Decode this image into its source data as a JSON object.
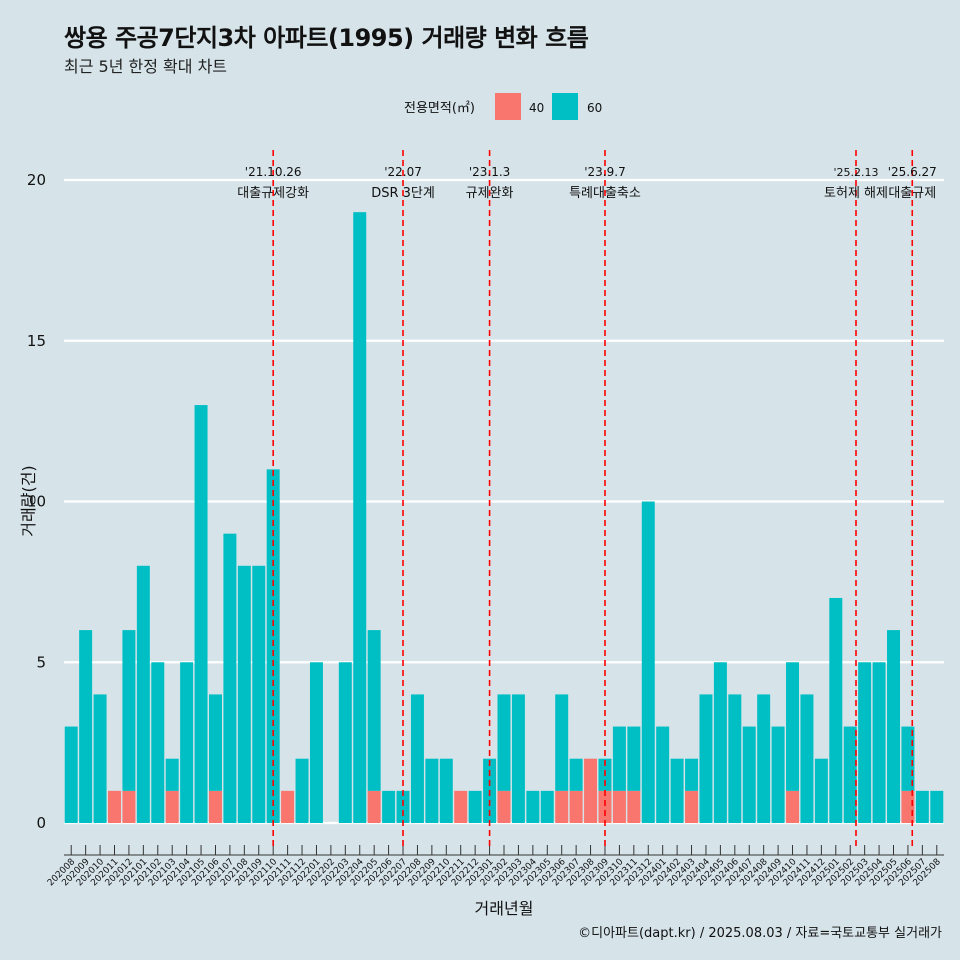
{
  "header": {
    "title": "쌍용 주공7단지3차 아파트(1995) 거래량 변화 흐름",
    "subtitle": "최근 5년 한정 확대 차트"
  },
  "caption": "©디아파트(dapt.kr) / 2025.08.03 / 자료=국토교통부 실거래가",
  "colors": {
    "background": "#d6e4ea",
    "series40": "#f8766d",
    "series60": "#00bfc4",
    "event_line": "#ff0000",
    "grid": "#ffffff"
  },
  "chart_data": {
    "type": "bar",
    "stacked": true,
    "xlabel": "거래년월",
    "ylabel": "거래량(건)",
    "ylim": [
      0,
      20
    ],
    "yticks": [
      0,
      5,
      10,
      15,
      20
    ],
    "grid": true,
    "legend": {
      "title": "전용면적(㎡)",
      "position": "top"
    },
    "categories": [
      "202008",
      "202009",
      "202010",
      "202011",
      "202012",
      "202101",
      "202102",
      "202103",
      "202104",
      "202105",
      "202106",
      "202107",
      "202108",
      "202109",
      "202110",
      "202111",
      "202112",
      "202201",
      "202202",
      "202203",
      "202204",
      "202205",
      "202206",
      "202207",
      "202208",
      "202209",
      "202210",
      "202211",
      "202212",
      "202301",
      "202302",
      "202303",
      "202304",
      "202305",
      "202306",
      "202307",
      "202308",
      "202309",
      "202310",
      "202311",
      "202312",
      "202401",
      "202402",
      "202403",
      "202404",
      "202405",
      "202406",
      "202407",
      "202408",
      "202409",
      "202410",
      "202411",
      "202412",
      "202501",
      "202502",
      "202503",
      "202504",
      "202505",
      "202506",
      "202507",
      "202508"
    ],
    "series": [
      {
        "name": "40",
        "color": "#f8766d",
        "values": [
          0,
          0,
          0,
          1,
          1,
          0,
          0,
          1,
          0,
          0,
          1,
          0,
          0,
          0,
          0,
          1,
          0,
          0,
          0,
          0,
          0,
          1,
          0,
          0,
          0,
          0,
          0,
          1,
          0,
          0,
          1,
          0,
          0,
          0,
          1,
          1,
          2,
          1,
          1,
          1,
          0,
          0,
          0,
          1,
          0,
          0,
          0,
          0,
          0,
          0,
          1,
          0,
          0,
          0,
          0,
          0,
          0,
          0,
          1,
          0,
          0
        ]
      },
      {
        "name": "60",
        "color": "#00bfc4",
        "values": [
          3,
          6,
          4,
          0,
          5,
          8,
          5,
          1,
          5,
          13,
          3,
          9,
          8,
          8,
          11,
          0,
          2,
          5,
          0,
          5,
          19,
          5,
          1,
          1,
          4,
          2,
          2,
          0,
          1,
          2,
          3,
          4,
          1,
          1,
          3,
          1,
          0,
          1,
          2,
          2,
          10,
          3,
          2,
          1,
          4,
          5,
          4,
          3,
          4,
          3,
          4,
          4,
          2,
          7,
          3,
          5,
          5,
          6,
          2,
          1,
          1
        ]
      }
    ],
    "events": [
      {
        "at": 14.0,
        "date": "'21.10.26",
        "label": "대출규제강화"
      },
      {
        "at": 23.0,
        "date": "'22.07",
        "label": "DSR 3단계"
      },
      {
        "at": 29.0,
        "date": "'23.1.3",
        "label": "규제완화"
      },
      {
        "at": 37.0,
        "date": "'23.9.7",
        "label": "특례대출축소"
      },
      {
        "at": 54.4,
        "date": "'25.2.13",
        "label": "토허제 해제"
      },
      {
        "at": 58.3,
        "date": "'25.6.27",
        "label": "대출규제"
      }
    ]
  }
}
